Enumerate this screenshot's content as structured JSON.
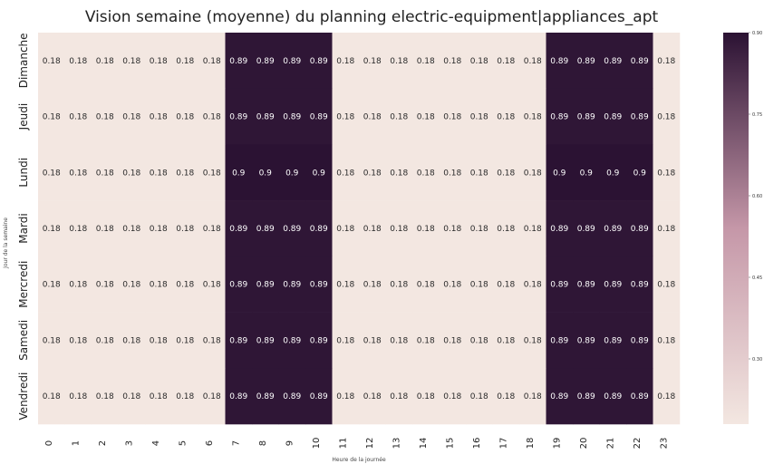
{
  "chart_data": {
    "type": "heatmap",
    "title": "Vision semaine (moyenne) du planning electric-equipment|appliances_apt",
    "xlabel": "Heure de la journée",
    "ylabel": "Jour de la semaine",
    "x_categories": [
      "0",
      "1",
      "2",
      "3",
      "4",
      "5",
      "6",
      "7",
      "8",
      "9",
      "10",
      "11",
      "12",
      "13",
      "14",
      "15",
      "16",
      "17",
      "18",
      "19",
      "20",
      "21",
      "22",
      "23"
    ],
    "y_categories": [
      "Dimanche",
      "Jeudi",
      "Lundi",
      "Mardi",
      "Mercredi",
      "Samedi",
      "Vendredi"
    ],
    "values": [
      [
        0.18,
        0.18,
        0.18,
        0.18,
        0.18,
        0.18,
        0.18,
        0.89,
        0.89,
        0.89,
        0.89,
        0.18,
        0.18,
        0.18,
        0.18,
        0.18,
        0.18,
        0.18,
        0.18,
        0.89,
        0.89,
        0.89,
        0.89,
        0.18
      ],
      [
        0.18,
        0.18,
        0.18,
        0.18,
        0.18,
        0.18,
        0.18,
        0.89,
        0.89,
        0.89,
        0.89,
        0.18,
        0.18,
        0.18,
        0.18,
        0.18,
        0.18,
        0.18,
        0.18,
        0.89,
        0.89,
        0.89,
        0.89,
        0.18
      ],
      [
        0.18,
        0.18,
        0.18,
        0.18,
        0.18,
        0.18,
        0.18,
        0.9,
        0.9,
        0.9,
        0.9,
        0.18,
        0.18,
        0.18,
        0.18,
        0.18,
        0.18,
        0.18,
        0.18,
        0.9,
        0.9,
        0.9,
        0.9,
        0.18
      ],
      [
        0.18,
        0.18,
        0.18,
        0.18,
        0.18,
        0.18,
        0.18,
        0.89,
        0.89,
        0.89,
        0.89,
        0.18,
        0.18,
        0.18,
        0.18,
        0.18,
        0.18,
        0.18,
        0.18,
        0.89,
        0.89,
        0.89,
        0.89,
        0.18
      ],
      [
        0.18,
        0.18,
        0.18,
        0.18,
        0.18,
        0.18,
        0.18,
        0.89,
        0.89,
        0.89,
        0.89,
        0.18,
        0.18,
        0.18,
        0.18,
        0.18,
        0.18,
        0.18,
        0.18,
        0.89,
        0.89,
        0.89,
        0.89,
        0.18
      ],
      [
        0.18,
        0.18,
        0.18,
        0.18,
        0.18,
        0.18,
        0.18,
        0.89,
        0.89,
        0.89,
        0.89,
        0.18,
        0.18,
        0.18,
        0.18,
        0.18,
        0.18,
        0.18,
        0.18,
        0.89,
        0.89,
        0.89,
        0.89,
        0.18
      ],
      [
        0.18,
        0.18,
        0.18,
        0.18,
        0.18,
        0.18,
        0.18,
        0.89,
        0.89,
        0.89,
        0.89,
        0.18,
        0.18,
        0.18,
        0.18,
        0.18,
        0.18,
        0.18,
        0.18,
        0.89,
        0.89,
        0.89,
        0.89,
        0.18
      ]
    ],
    "colorbar": {
      "ticks": [
        0.3,
        0.45,
        0.6,
        0.75,
        0.9
      ],
      "tick_labels": [
        "0.30",
        "0.45",
        "0.60",
        "0.75",
        "0.90"
      ],
      "range": [
        0.18,
        0.9
      ]
    },
    "colormap": {
      "low": "#f3e7e1",
      "mid": "#c597a8",
      "high": "#2b1233"
    },
    "grid": false,
    "legend": "colorbar-right"
  }
}
